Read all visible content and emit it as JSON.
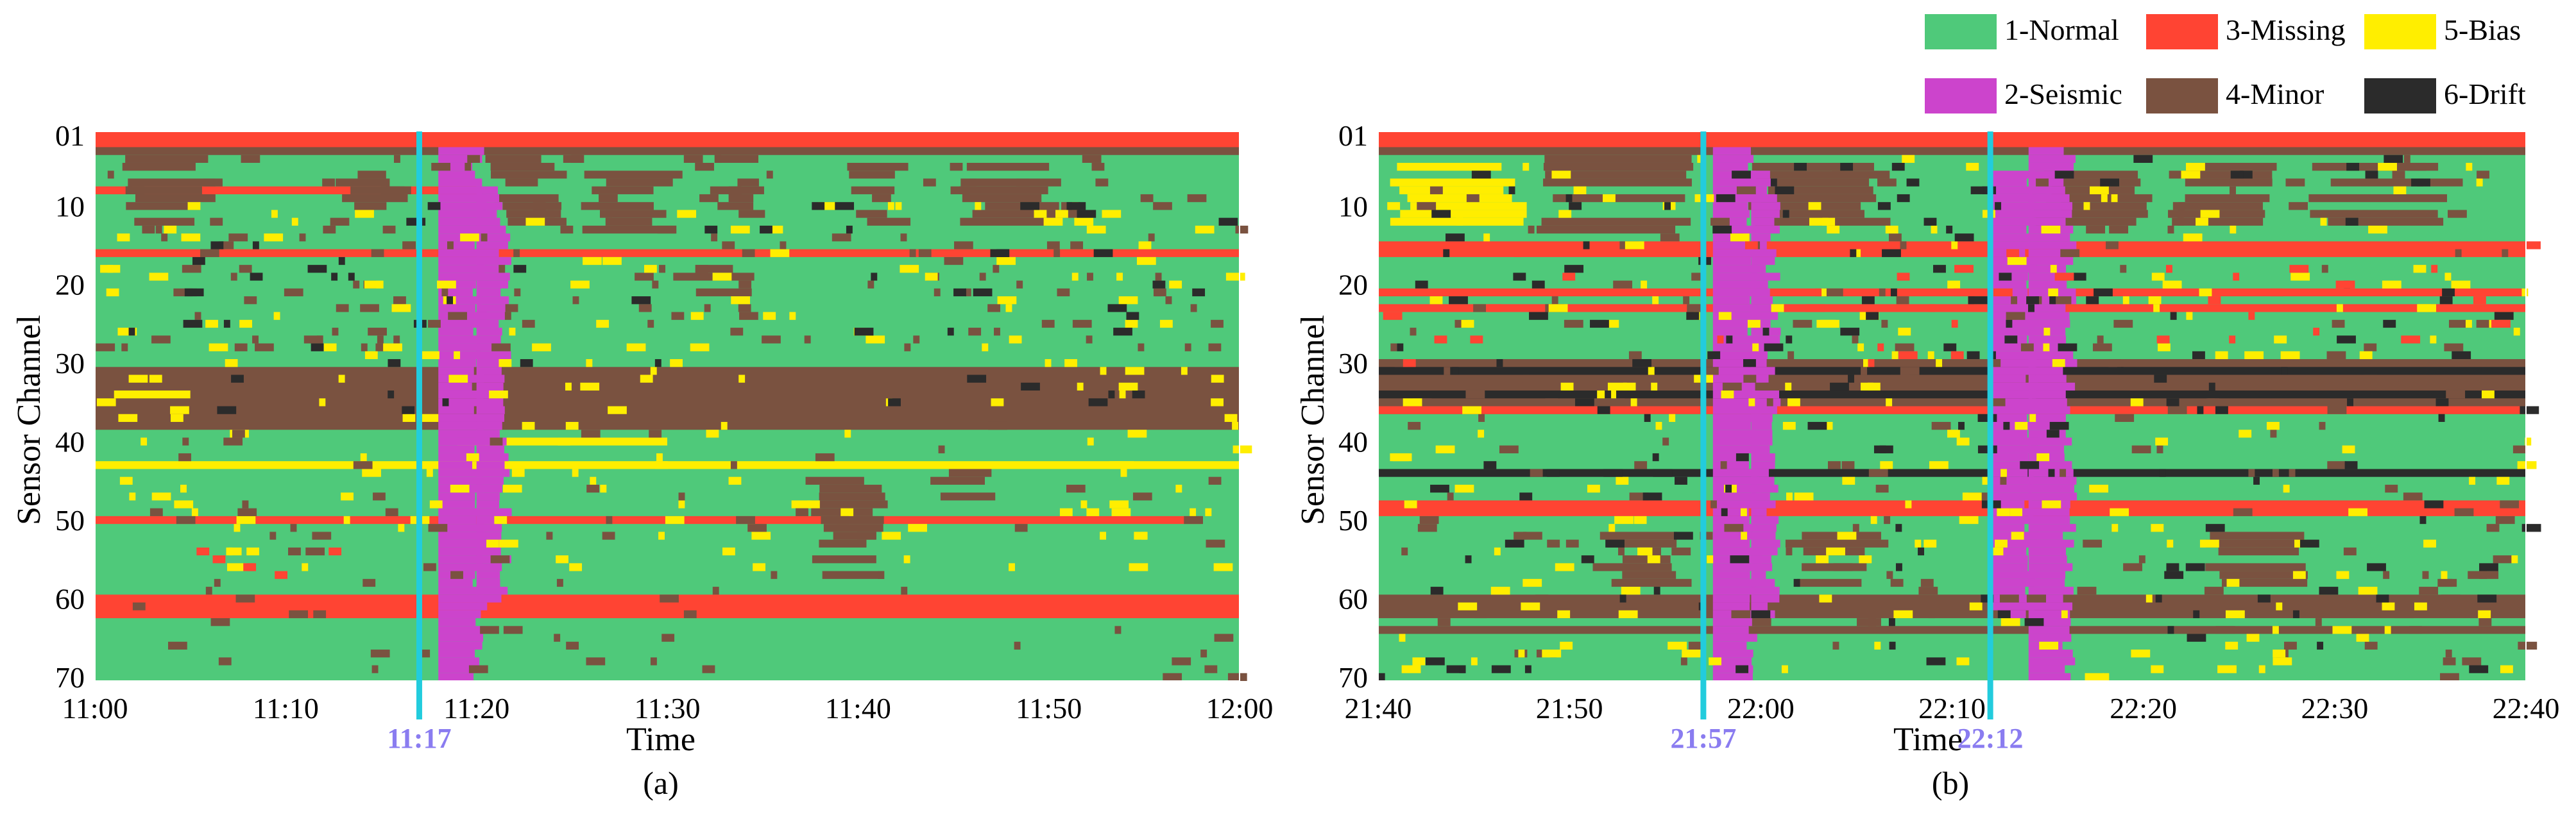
{
  "chart_data": [
    {
      "type": "heatmap",
      "panel_label": "(a)",
      "xlabel": "Time",
      "ylabel": "Sensor Channel",
      "x_ticks": [
        "11:00",
        "11:10",
        "11:20",
        "11:30",
        "11:40",
        "11:50",
        "12:00"
      ],
      "x_range_minutes": [
        0,
        60
      ],
      "y_ticks": [
        "01",
        "10",
        "20",
        "30",
        "40",
        "50",
        "60",
        "70"
      ],
      "y_tick_values": [
        1,
        10,
        20,
        30,
        40,
        50,
        60,
        70
      ],
      "channels": 70,
      "event_markers": [
        {
          "label": "11:17",
          "minute": 17
        }
      ],
      "background_category": 1,
      "channel_bands": [
        {
          "channels": [
            1,
            2
          ],
          "category": 3,
          "start": 0,
          "end": 60
        },
        {
          "channels": [
            3,
            3
          ],
          "category": 4,
          "start": 0,
          "end": 60
        },
        {
          "channels": [
            8,
            8
          ],
          "category": 3,
          "start": 0,
          "end": 20
        },
        {
          "channels": [
            16,
            16
          ],
          "category": 3,
          "start": 0,
          "end": 60
        },
        {
          "channels": [
            31,
            37
          ],
          "category": 4,
          "start": 0,
          "end": 60
        },
        {
          "channels": [
            38,
            38
          ],
          "category": 4,
          "start": 0,
          "end": 60
        },
        {
          "channels": [
            43,
            43
          ],
          "category": 5,
          "start": 0,
          "end": 60
        },
        {
          "channels": [
            50,
            50
          ],
          "category": 3,
          "start": 0,
          "end": 58
        },
        {
          "channels": [
            60,
            62
          ],
          "category": 3,
          "start": 0,
          "end": 60
        },
        {
          "channels": [
            34,
            34
          ],
          "category": 5,
          "start": 1,
          "end": 5
        },
        {
          "channels": [
            40,
            40
          ],
          "category": 5,
          "start": 19,
          "end": 30
        }
      ],
      "patches": [
        {
          "channels": [
            4,
            12
          ],
          "category": 4,
          "start": 2,
          "end": 6
        },
        {
          "channels": [
            5,
            11
          ],
          "category": 4,
          "start": 13,
          "end": 16
        },
        {
          "channels": [
            4,
            12
          ],
          "category": 4,
          "start": 21,
          "end": 24
        },
        {
          "channels": [
            6,
            13
          ],
          "category": 4,
          "start": 26,
          "end": 30
        },
        {
          "channels": [
            4,
            11
          ],
          "category": 4,
          "start": 33,
          "end": 35
        },
        {
          "channels": [
            5,
            12
          ],
          "category": 4,
          "start": 40,
          "end": 42
        },
        {
          "channels": [
            4,
            13
          ],
          "category": 4,
          "start": 46,
          "end": 50
        },
        {
          "channels": [
            18,
            21
          ],
          "category": 4,
          "start": 31,
          "end": 34
        },
        {
          "channels": [
            44,
            57
          ],
          "category": 4,
          "start": 38,
          "end": 41
        },
        {
          "channels": [
            44,
            47
          ],
          "category": 4,
          "start": 44,
          "end": 47
        },
        {
          "channels": [
            3,
            70
          ],
          "category": 2,
          "start": 18,
          "end": 20
        },
        {
          "channels": [
            8,
            60
          ],
          "category": 2,
          "start": 20,
          "end": 21.3
        }
      ],
      "scatter": [
        {
          "category": 4,
          "count": 150,
          "channels": [
            4,
            28
          ],
          "start": 0,
          "end": 60
        },
        {
          "category": 5,
          "count": 190,
          "channels": [
            10,
            56
          ],
          "start": 0,
          "end": 60
        },
        {
          "category": 6,
          "count": 55,
          "channels": [
            10,
            36
          ],
          "start": 0,
          "end": 60
        },
        {
          "category": 4,
          "count": 80,
          "channels": [
            38,
            70
          ],
          "start": 0,
          "end": 60
        },
        {
          "category": 3,
          "count": 6,
          "channels": [
            54,
            60
          ],
          "start": 5,
          "end": 15
        }
      ]
    },
    {
      "type": "heatmap",
      "panel_label": "(b)",
      "xlabel": "Time",
      "ylabel": "Sensor Channel",
      "x_ticks": [
        "21:40",
        "21:50",
        "22:00",
        "22:10",
        "22:20",
        "22:30",
        "22:40"
      ],
      "x_range_minutes": [
        0,
        60
      ],
      "y_ticks": [
        "01",
        "10",
        "20",
        "30",
        "40",
        "50",
        "60",
        "70"
      ],
      "y_tick_values": [
        1,
        10,
        20,
        30,
        40,
        50,
        60,
        70
      ],
      "channels": 70,
      "event_markers": [
        {
          "label": "21:57",
          "minute": 17
        },
        {
          "label": "22:12",
          "minute": 32
        }
      ],
      "background_category": 1,
      "channel_bands": [
        {
          "channels": [
            1,
            2
          ],
          "category": 3,
          "start": 0,
          "end": 60
        },
        {
          "channels": [
            3,
            3
          ],
          "category": 4,
          "start": 0,
          "end": 60
        },
        {
          "channels": [
            15,
            16
          ],
          "category": 3,
          "start": 0,
          "end": 60
        },
        {
          "channels": [
            21,
            21
          ],
          "category": 3,
          "start": 0,
          "end": 60
        },
        {
          "channels": [
            23,
            23
          ],
          "category": 3,
          "start": 0,
          "end": 60
        },
        {
          "channels": [
            30,
            36
          ],
          "category": 4,
          "start": 0,
          "end": 60
        },
        {
          "channels": [
            31,
            31
          ],
          "category": 6,
          "start": 0,
          "end": 60
        },
        {
          "channels": [
            34,
            34
          ],
          "category": 6,
          "start": 0,
          "end": 60
        },
        {
          "channels": [
            36,
            36
          ],
          "category": 3,
          "start": 0,
          "end": 60
        },
        {
          "channels": [
            44,
            44
          ],
          "category": 6,
          "start": 0,
          "end": 60
        },
        {
          "channels": [
            48,
            49
          ],
          "category": 3,
          "start": 0,
          "end": 60
        },
        {
          "channels": [
            60,
            62
          ],
          "category": 4,
          "start": 0,
          "end": 60
        },
        {
          "channels": [
            64,
            64
          ],
          "category": 4,
          "start": 0,
          "end": 60
        }
      ],
      "patches": [
        {
          "channels": [
            4,
            13
          ],
          "category": 4,
          "start": 9,
          "end": 16
        },
        {
          "channels": [
            5,
            12
          ],
          "category": 4,
          "start": 20,
          "end": 26
        },
        {
          "channels": [
            5,
            12
          ],
          "category": 4,
          "start": 35,
          "end": 40
        },
        {
          "channels": [
            5,
            12
          ],
          "category": 4,
          "start": 42,
          "end": 47
        },
        {
          "channels": [
            5,
            12
          ],
          "category": 4,
          "start": 49,
          "end": 56
        },
        {
          "channels": [
            5,
            12
          ],
          "category": 5,
          "start": 1,
          "end": 7
        },
        {
          "channels": [
            52,
            58
          ],
          "category": 4,
          "start": 12,
          "end": 16
        },
        {
          "channels": [
            52,
            58
          ],
          "category": 4,
          "start": 22,
          "end": 26
        },
        {
          "channels": [
            52,
            58
          ],
          "category": 4,
          "start": 44,
          "end": 48
        },
        {
          "channels": [
            3,
            70
          ],
          "category": 2,
          "start": 17.5,
          "end": 19.5
        },
        {
          "channels": [
            3,
            70
          ],
          "category": 2,
          "start": 34,
          "end": 36
        },
        {
          "channels": [
            6,
            62
          ],
          "category": 2,
          "start": 19.5,
          "end": 20.5
        },
        {
          "channels": [
            6,
            62
          ],
          "category": 2,
          "start": 32,
          "end": 34
        }
      ],
      "scatter": [
        {
          "category": 4,
          "count": 200,
          "channels": [
            4,
            70
          ],
          "start": 0,
          "end": 60
        },
        {
          "category": 5,
          "count": 240,
          "channels": [
            4,
            70
          ],
          "start": 0,
          "end": 60
        },
        {
          "category": 6,
          "count": 180,
          "channels": [
            4,
            70
          ],
          "start": 0,
          "end": 60
        },
        {
          "category": 3,
          "count": 40,
          "channels": [
            15,
            30
          ],
          "start": 0,
          "end": 60
        }
      ]
    }
  ],
  "legend": {
    "items": [
      {
        "id": 1,
        "label": "1-Normal",
        "color": "#4fc97a"
      },
      {
        "id": 2,
        "label": "2-Seismic",
        "color": "#cc44cc"
      },
      {
        "id": 3,
        "label": "3-Missing",
        "color": "#ff4433"
      },
      {
        "id": 4,
        "label": "4-Minor",
        "color": "#7a5240"
      },
      {
        "id": 5,
        "label": "5-Bias",
        "color": "#ffee00"
      },
      {
        "id": 6,
        "label": "6-Drift",
        "color": "#2b2b2b"
      }
    ]
  },
  "colors": {
    "event_line": "#22ccdd",
    "event_label": "#8a7cf0"
  }
}
